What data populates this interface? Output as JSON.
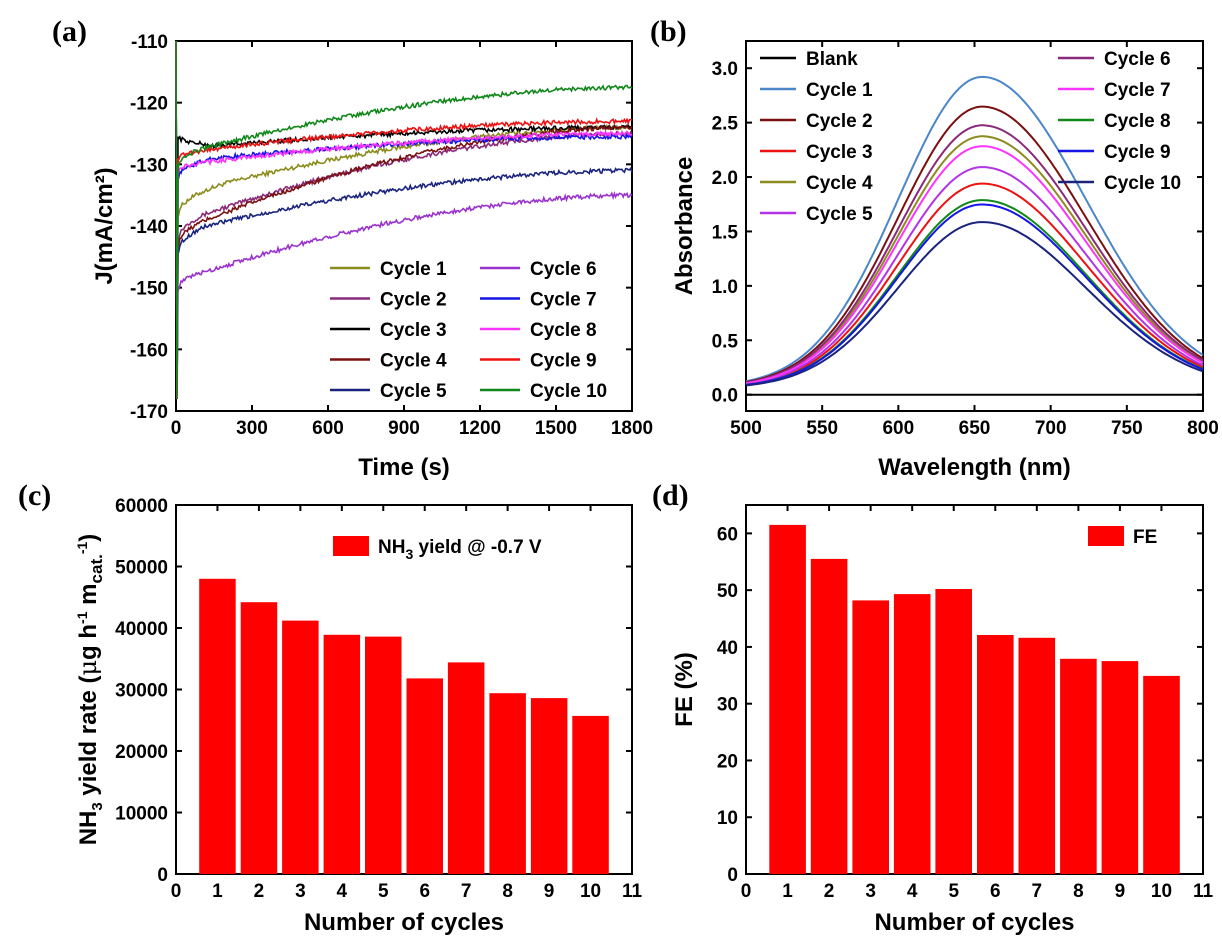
{
  "panels": {
    "a": "(a)",
    "b": "(b)",
    "c": "(c)",
    "d": "(d)"
  },
  "chart_data": [
    {
      "id": "a",
      "type": "line",
      "xlabel": "Time (s)",
      "ylabel": "J(mA/cm²)",
      "xlim": [
        0,
        1800
      ],
      "ylim": [
        -170,
        -110
      ],
      "xticks": [
        0,
        300,
        600,
        900,
        1200,
        1500,
        1800
      ],
      "yticks": [
        -170,
        -160,
        -150,
        -140,
        -130,
        -120,
        -110
      ],
      "legend_position": "bottom-right",
      "legend_columns": 2,
      "series": [
        {
          "name": "Cycle 1",
          "color": "#8c8c1e",
          "start": -138,
          "t_knee": 200,
          "v_knee": -133,
          "end": -124
        },
        {
          "name": "Cycle 2",
          "color": "#8b2a7a",
          "start": -142,
          "t_knee": 120,
          "v_knee": -138,
          "end": -125
        },
        {
          "name": "Cycle 3",
          "color": "#000000",
          "start": -125.5,
          "t_knee": 150,
          "v_knee": -127,
          "end": -124
        },
        {
          "name": "Cycle 4",
          "color": "#7a1010",
          "start": -143,
          "t_knee": 120,
          "v_knee": -139,
          "end": -124
        },
        {
          "name": "Cycle 5",
          "color": "#1a237e",
          "start": -144,
          "t_knee": 120,
          "v_knee": -140,
          "end": -131
        },
        {
          "name": "Cycle 6",
          "color": "#9a32cd",
          "start": -150,
          "t_knee": 150,
          "v_knee": -147,
          "end": -135
        },
        {
          "name": "Cycle 7",
          "color": "#1515e6",
          "start": -132,
          "t_knee": 150,
          "v_knee": -129,
          "end": -125.5
        },
        {
          "name": "Cycle 8",
          "color": "#ff33ff",
          "start": -131,
          "t_knee": 150,
          "v_knee": -129.5,
          "end": -125
        },
        {
          "name": "Cycle 9",
          "color": "#ee1111",
          "start": -129,
          "t_knee": 150,
          "v_knee": -127.5,
          "end": -123
        },
        {
          "name": "Cycle 10",
          "color": "#11881a",
          "start": -130,
          "t_knee": 100,
          "v_knee": -127.5,
          "end": -117.5
        }
      ]
    },
    {
      "id": "b",
      "type": "line",
      "xlabel": "Wavelength (nm)",
      "ylabel": "Absorbance",
      "xlim": [
        500,
        800
      ],
      "ylim": [
        -0.15,
        3.25
      ],
      "xticks": [
        500,
        550,
        600,
        650,
        700,
        750,
        800
      ],
      "yticks": [
        0.0,
        0.5,
        1.0,
        1.5,
        2.0,
        2.5,
        3.0
      ],
      "peak_wavelength": 655,
      "legend_position": "top",
      "legend_columns": 2,
      "series": [
        {
          "name": "Blank",
          "color": "#000000",
          "peak": 0
        },
        {
          "name": "Cycle 1",
          "color": "#4a86c8",
          "peak": 2.85
        },
        {
          "name": "Cycle 2",
          "color": "#7a1010",
          "peak": 2.58
        },
        {
          "name": "Cycle 3",
          "color": "#ee1111",
          "peak": 1.88
        },
        {
          "name": "Cycle 4",
          "color": "#8c8c1e",
          "peak": 2.31
        },
        {
          "name": "Cycle 5",
          "color": "#b433e6",
          "peak": 2.03
        },
        {
          "name": "Cycle 6",
          "color": "#8b2a7a",
          "peak": 2.41
        },
        {
          "name": "Cycle 7",
          "color": "#ff33ff",
          "peak": 2.22
        },
        {
          "name": "Cycle 8",
          "color": "#11881a",
          "peak": 1.73
        },
        {
          "name": "Cycle 9",
          "color": "#1515e6",
          "peak": 1.69
        },
        {
          "name": "Cycle 10",
          "color": "#1a237e",
          "peak": 1.53
        }
      ]
    },
    {
      "id": "c",
      "type": "bar",
      "xlabel": "Number of cycles",
      "ylabel": "NH3 yield rate (μg h⁻¹ mcat.⁻¹)",
      "xlim": [
        0,
        11
      ],
      "ylim": [
        0,
        60000
      ],
      "xticks": [
        0,
        1,
        2,
        3,
        4,
        5,
        6,
        7,
        8,
        9,
        10,
        11
      ],
      "yticks": [
        0,
        10000,
        20000,
        30000,
        40000,
        50000,
        60000
      ],
      "categories": [
        1,
        2,
        3,
        4,
        5,
        6,
        7,
        8,
        9,
        10
      ],
      "values": [
        48000,
        44200,
        41200,
        38900,
        38600,
        31800,
        34400,
        29400,
        28600,
        25700
      ],
      "bar_color": "#ff0000",
      "legend": "NH3 yield @ -0.7 V",
      "legend_position": "top-right"
    },
    {
      "id": "d",
      "type": "bar",
      "xlabel": "Number of cycles",
      "ylabel": "FE (%)",
      "xlim": [
        0,
        11
      ],
      "ylim": [
        0,
        65
      ],
      "xticks": [
        0,
        1,
        2,
        3,
        4,
        5,
        6,
        7,
        8,
        9,
        10,
        11
      ],
      "yticks": [
        0,
        10,
        20,
        30,
        40,
        50,
        60
      ],
      "categories": [
        1,
        2,
        3,
        4,
        5,
        6,
        7,
        8,
        9,
        10
      ],
      "values": [
        61.5,
        55.5,
        48.2,
        49.3,
        50.2,
        42.1,
        41.6,
        37.9,
        37.5,
        34.9
      ],
      "bar_color": "#ff0000",
      "legend": "FE",
      "legend_position": "top-right"
    }
  ]
}
